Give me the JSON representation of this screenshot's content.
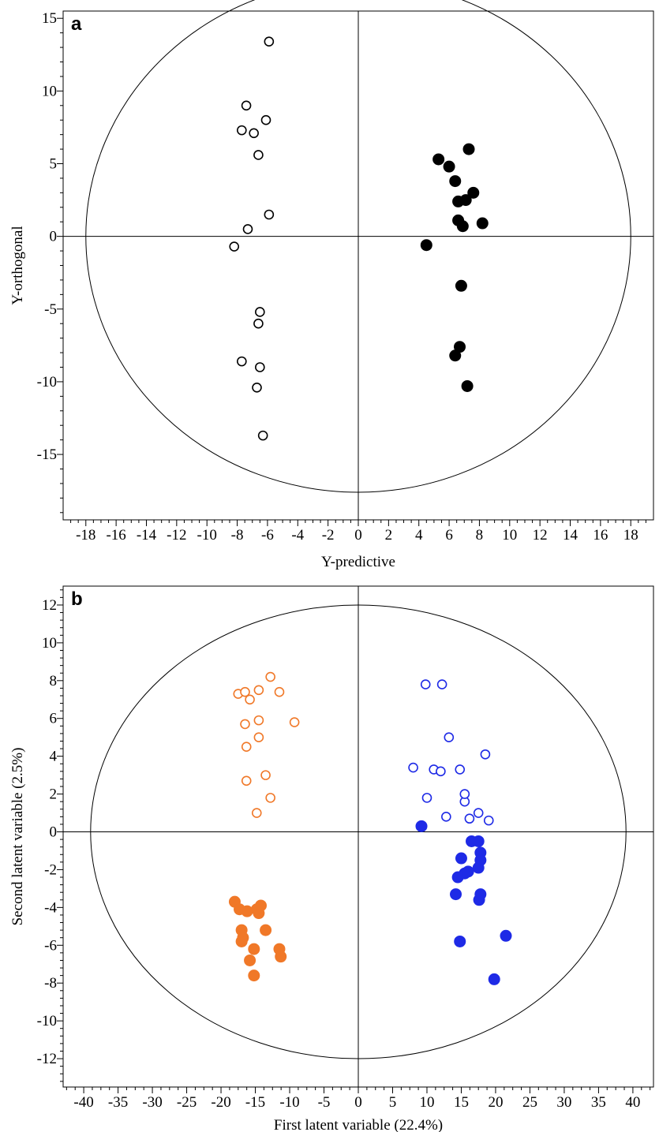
{
  "chart_data": [
    {
      "type": "scatter",
      "panel_label": "a",
      "title": "",
      "xlabel": "Y-predictive",
      "ylabel": "Y-orthogonal",
      "xlim": [
        -19.5,
        19.5
      ],
      "ylim": [
        -19.5,
        15.5
      ],
      "xticks": [
        -18,
        -16,
        -14,
        -12,
        -10,
        -8,
        -6,
        -4,
        -2,
        0,
        2,
        4,
        6,
        8,
        10,
        12,
        14,
        16,
        18
      ],
      "yticks": [
        -15,
        -10,
        -5,
        0,
        5,
        10,
        15
      ],
      "ellipse": {
        "cx": 0,
        "cy": 0,
        "rx": 18,
        "ry": 17.6
      },
      "reference_lines": {
        "x": 0,
        "y": 0
      },
      "grid": false,
      "series": [
        {
          "marker": "open-circle",
          "color": "#000000",
          "points": [
            [
              -5.9,
              13.4
            ],
            [
              -7.4,
              9.0
            ],
            [
              -6.1,
              8.0
            ],
            [
              -7.7,
              7.3
            ],
            [
              -6.9,
              7.1
            ],
            [
              -6.6,
              5.6
            ],
            [
              -5.9,
              1.5
            ],
            [
              -7.3,
              0.5
            ],
            [
              -8.2,
              -0.7
            ],
            [
              -6.5,
              -5.2
            ],
            [
              -6.6,
              -6.0
            ],
            [
              -7.7,
              -8.6
            ],
            [
              -6.5,
              -9.0
            ],
            [
              -6.7,
              -10.4
            ],
            [
              -6.3,
              -13.7
            ]
          ]
        },
        {
          "marker": "filled-circle",
          "color": "#000000",
          "points": [
            [
              7.3,
              6.0
            ],
            [
              5.3,
              5.3
            ],
            [
              6.0,
              4.8
            ],
            [
              6.4,
              3.8
            ],
            [
              7.6,
              3.0
            ],
            [
              7.1,
              2.5
            ],
            [
              6.6,
              2.4
            ],
            [
              6.6,
              1.1
            ],
            [
              6.9,
              0.7
            ],
            [
              8.2,
              0.9
            ],
            [
              4.5,
              -0.6
            ],
            [
              6.8,
              -3.4
            ],
            [
              6.7,
              -7.6
            ],
            [
              6.4,
              -8.2
            ],
            [
              7.2,
              -10.3
            ]
          ]
        }
      ]
    },
    {
      "type": "scatter",
      "panel_label": "b",
      "title": "",
      "xlabel": "First latent variable (22.4%)",
      "ylabel": "Second latent variable (2.5%)",
      "xlim": [
        -43,
        43
      ],
      "ylim": [
        -13.5,
        13
      ],
      "xticks": [
        -40,
        -35,
        -30,
        -25,
        -20,
        -15,
        -10,
        -5,
        0,
        5,
        10,
        15,
        20,
        25,
        30,
        35,
        40
      ],
      "yticks": [
        -12,
        -10,
        -8,
        -6,
        -4,
        -2,
        0,
        2,
        4,
        6,
        8,
        10,
        12
      ],
      "ellipse": {
        "cx": 0,
        "cy": 0,
        "rx": 39,
        "ry": 12
      },
      "reference_lines": {
        "x": 0,
        "y": 0
      },
      "grid": false,
      "series": [
        {
          "marker": "open-circle",
          "color": "#F07828",
          "points": [
            [
              -12.8,
              8.2
            ],
            [
              -17.5,
              7.3
            ],
            [
              -16.5,
              7.4
            ],
            [
              -15.8,
              7.0
            ],
            [
              -14.5,
              7.5
            ],
            [
              -11.5,
              7.4
            ],
            [
              -14.5,
              5.9
            ],
            [
              -16.5,
              5.7
            ],
            [
              -9.3,
              5.8
            ],
            [
              -14.5,
              5.0
            ],
            [
              -16.3,
              4.5
            ],
            [
              -13.5,
              3.0
            ],
            [
              -16.3,
              2.7
            ],
            [
              -12.8,
              1.8
            ],
            [
              -14.8,
              1.0
            ]
          ]
        },
        {
          "marker": "filled-circle",
          "color": "#F07828",
          "points": [
            [
              -18.0,
              -3.7
            ],
            [
              -17.3,
              -4.1
            ],
            [
              -16.2,
              -4.2
            ],
            [
              -14.8,
              -4.1
            ],
            [
              -14.5,
              -4.3
            ],
            [
              -14.2,
              -3.9
            ],
            [
              -17.0,
              -5.2
            ],
            [
              -13.5,
              -5.2
            ],
            [
              -16.8,
              -5.6
            ],
            [
              -17.0,
              -5.8
            ],
            [
              -15.2,
              -6.2
            ],
            [
              -11.5,
              -6.2
            ],
            [
              -11.3,
              -6.6
            ],
            [
              -15.8,
              -6.8
            ],
            [
              -15.2,
              -7.6
            ]
          ]
        },
        {
          "marker": "open-circle",
          "color": "#1E2AE6",
          "points": [
            [
              9.8,
              7.8
            ],
            [
              12.2,
              7.8
            ],
            [
              13.2,
              5.0
            ],
            [
              18.5,
              4.1
            ],
            [
              8.0,
              3.4
            ],
            [
              11.0,
              3.3
            ],
            [
              12.0,
              3.2
            ],
            [
              14.8,
              3.3
            ],
            [
              15.5,
              1.6
            ],
            [
              15.5,
              2.0
            ],
            [
              10.0,
              1.8
            ],
            [
              12.8,
              0.8
            ],
            [
              16.2,
              0.7
            ],
            [
              17.5,
              1.0
            ],
            [
              19.0,
              0.6
            ]
          ]
        },
        {
          "marker": "filled-circle",
          "color": "#1E2AE6",
          "points": [
            [
              9.2,
              0.3
            ],
            [
              16.5,
              -0.5
            ],
            [
              17.5,
              -0.5
            ],
            [
              17.8,
              -1.1
            ],
            [
              15.0,
              -1.4
            ],
            [
              17.8,
              -1.5
            ],
            [
              17.5,
              -1.9
            ],
            [
              16.0,
              -2.1
            ],
            [
              15.5,
              -2.2
            ],
            [
              14.5,
              -2.4
            ],
            [
              14.2,
              -3.3
            ],
            [
              17.8,
              -3.3
            ],
            [
              17.6,
              -3.6
            ],
            [
              14.8,
              -5.8
            ],
            [
              21.5,
              -5.5
            ],
            [
              19.8,
              -7.8
            ]
          ]
        }
      ]
    }
  ]
}
